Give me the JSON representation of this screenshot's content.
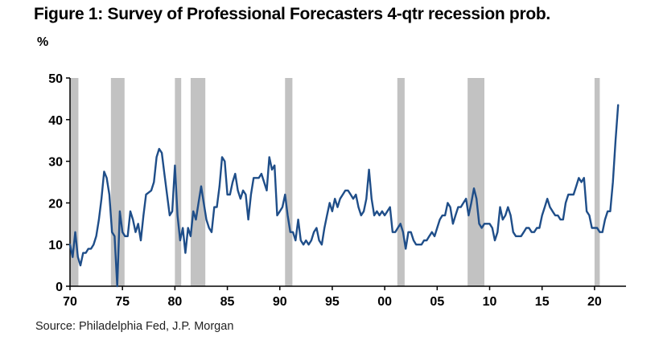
{
  "title": "Figure 1: Survey of Professional Forecasters 4-qtr recession prob.",
  "unit_label": "%",
  "source": "Source: Philadelphia Fed, J.P. Morgan",
  "colors": {
    "line": "#1f4e89",
    "recession": "#c2c2c2",
    "axis": "#000000"
  },
  "chart_data": {
    "type": "line",
    "title": "Figure 1: Survey of Professional Forecasters 4-qtr recession prob.",
    "ylabel": "%",
    "ylim": [
      0,
      50
    ],
    "xlim": [
      1970,
      2023
    ],
    "y_ticks": [
      0,
      10,
      20,
      30,
      40,
      50
    ],
    "x_ticks": [
      {
        "year": 1970,
        "label": "70"
      },
      {
        "year": 1975,
        "label": "75"
      },
      {
        "year": 1980,
        "label": "80"
      },
      {
        "year": 1985,
        "label": "85"
      },
      {
        "year": 1990,
        "label": "90"
      },
      {
        "year": 1995,
        "label": "95"
      },
      {
        "year": 2000,
        "label": "00"
      },
      {
        "year": 2005,
        "label": "05"
      },
      {
        "year": 2010,
        "label": "10"
      },
      {
        "year": 2015,
        "label": "15"
      },
      {
        "year": 2020,
        "label": "20"
      }
    ],
    "recessions": [
      [
        1970.0,
        1970.8
      ],
      [
        1973.9,
        1975.2
      ],
      [
        1980.0,
        1980.6
      ],
      [
        1981.5,
        1982.9
      ],
      [
        1990.5,
        1991.2
      ],
      [
        2001.2,
        2001.9
      ],
      [
        2007.9,
        2009.5
      ],
      [
        2020.0,
        2020.5
      ]
    ],
    "series": [
      {
        "values": [
          [
            1970.0,
            10
          ],
          [
            1970.25,
            7
          ],
          [
            1970.5,
            13
          ],
          [
            1970.75,
            7
          ],
          [
            1971.0,
            5
          ],
          [
            1971.25,
            8
          ],
          [
            1971.5,
            8
          ],
          [
            1971.75,
            9
          ],
          [
            1972.0,
            9
          ],
          [
            1972.25,
            10
          ],
          [
            1972.5,
            12
          ],
          [
            1972.75,
            16
          ],
          [
            1973.0,
            21
          ],
          [
            1973.25,
            27.5
          ],
          [
            1973.5,
            26
          ],
          [
            1973.75,
            22
          ],
          [
            1974.0,
            13
          ],
          [
            1974.25,
            12
          ],
          [
            1974.5,
            0
          ],
          [
            1974.75,
            18
          ],
          [
            1975.0,
            13
          ],
          [
            1975.25,
            12
          ],
          [
            1975.5,
            12
          ],
          [
            1975.75,
            18
          ],
          [
            1976.0,
            16
          ],
          [
            1976.25,
            13
          ],
          [
            1976.5,
            15
          ],
          [
            1976.75,
            11
          ],
          [
            1977.0,
            17
          ],
          [
            1977.25,
            22
          ],
          [
            1977.5,
            22.5
          ],
          [
            1977.75,
            23
          ],
          [
            1978.0,
            25
          ],
          [
            1978.25,
            31
          ],
          [
            1978.5,
            33
          ],
          [
            1978.75,
            32
          ],
          [
            1979.0,
            27
          ],
          [
            1979.25,
            22
          ],
          [
            1979.5,
            17
          ],
          [
            1979.75,
            18
          ],
          [
            1980.0,
            29
          ],
          [
            1980.25,
            17
          ],
          [
            1980.5,
            11
          ],
          [
            1980.75,
            14
          ],
          [
            1981.0,
            8
          ],
          [
            1981.25,
            14
          ],
          [
            1981.5,
            12
          ],
          [
            1981.75,
            18
          ],
          [
            1982.0,
            16
          ],
          [
            1982.25,
            20
          ],
          [
            1982.5,
            24
          ],
          [
            1982.75,
            20
          ],
          [
            1983.0,
            16
          ],
          [
            1983.25,
            14
          ],
          [
            1983.5,
            13
          ],
          [
            1983.75,
            19
          ],
          [
            1984.0,
            19
          ],
          [
            1984.25,
            24
          ],
          [
            1984.5,
            31
          ],
          [
            1984.75,
            30
          ],
          [
            1985.0,
            22
          ],
          [
            1985.25,
            22
          ],
          [
            1985.5,
            25
          ],
          [
            1985.75,
            27
          ],
          [
            1986.0,
            23
          ],
          [
            1986.25,
            21
          ],
          [
            1986.5,
            23
          ],
          [
            1986.75,
            22
          ],
          [
            1987.0,
            16
          ],
          [
            1987.25,
            22
          ],
          [
            1987.5,
            26
          ],
          [
            1987.75,
            26
          ],
          [
            1988.0,
            26
          ],
          [
            1988.25,
            27
          ],
          [
            1988.5,
            25
          ],
          [
            1988.75,
            23
          ],
          [
            1989.0,
            31
          ],
          [
            1989.25,
            28
          ],
          [
            1989.5,
            29
          ],
          [
            1989.75,
            17
          ],
          [
            1990.0,
            18
          ],
          [
            1990.25,
            19
          ],
          [
            1990.5,
            22
          ],
          [
            1990.75,
            17
          ],
          [
            1991.0,
            13
          ],
          [
            1991.25,
            13
          ],
          [
            1991.5,
            11
          ],
          [
            1991.75,
            16
          ],
          [
            1992.0,
            11
          ],
          [
            1992.25,
            10
          ],
          [
            1992.5,
            11
          ],
          [
            1992.75,
            10
          ],
          [
            1993.0,
            11
          ],
          [
            1993.25,
            13
          ],
          [
            1993.5,
            14
          ],
          [
            1993.75,
            11
          ],
          [
            1994.0,
            10
          ],
          [
            1994.25,
            14
          ],
          [
            1994.5,
            17
          ],
          [
            1994.75,
            20
          ],
          [
            1995.0,
            18
          ],
          [
            1995.25,
            21
          ],
          [
            1995.5,
            19
          ],
          [
            1995.75,
            21
          ],
          [
            1996.0,
            22
          ],
          [
            1996.25,
            23
          ],
          [
            1996.5,
            23
          ],
          [
            1996.75,
            22
          ],
          [
            1997.0,
            21
          ],
          [
            1997.25,
            22
          ],
          [
            1997.5,
            19
          ],
          [
            1997.75,
            17
          ],
          [
            1998.0,
            18
          ],
          [
            1998.25,
            21
          ],
          [
            1998.5,
            28
          ],
          [
            1998.75,
            21
          ],
          [
            1999.0,
            17
          ],
          [
            1999.25,
            18
          ],
          [
            1999.5,
            17
          ],
          [
            1999.75,
            18
          ],
          [
            2000.0,
            17
          ],
          [
            2000.25,
            18
          ],
          [
            2000.5,
            19
          ],
          [
            2000.75,
            13
          ],
          [
            2001.0,
            13
          ],
          [
            2001.25,
            14
          ],
          [
            2001.5,
            15
          ],
          [
            2001.75,
            13
          ],
          [
            2002.0,
            9
          ],
          [
            2002.25,
            13
          ],
          [
            2002.5,
            13
          ],
          [
            2002.75,
            11
          ],
          [
            2003.0,
            10
          ],
          [
            2003.25,
            10
          ],
          [
            2003.5,
            10
          ],
          [
            2003.75,
            11
          ],
          [
            2004.0,
            11
          ],
          [
            2004.25,
            12
          ],
          [
            2004.5,
            13
          ],
          [
            2004.75,
            12
          ],
          [
            2005.0,
            14
          ],
          [
            2005.25,
            16
          ],
          [
            2005.5,
            17
          ],
          [
            2005.75,
            17
          ],
          [
            2006.0,
            20
          ],
          [
            2006.25,
            19
          ],
          [
            2006.5,
            15
          ],
          [
            2006.75,
            17
          ],
          [
            2007.0,
            19
          ],
          [
            2007.25,
            19
          ],
          [
            2007.5,
            20
          ],
          [
            2007.75,
            21
          ],
          [
            2008.0,
            17
          ],
          [
            2008.25,
            20
          ],
          [
            2008.5,
            23.5
          ],
          [
            2008.75,
            21
          ],
          [
            2009.0,
            15
          ],
          [
            2009.25,
            14
          ],
          [
            2009.5,
            15
          ],
          [
            2009.75,
            15
          ],
          [
            2010.0,
            15
          ],
          [
            2010.25,
            14
          ],
          [
            2010.5,
            11
          ],
          [
            2010.75,
            13
          ],
          [
            2011.0,
            19
          ],
          [
            2011.25,
            16
          ],
          [
            2011.5,
            17
          ],
          [
            2011.75,
            19
          ],
          [
            2012.0,
            17
          ],
          [
            2012.25,
            13
          ],
          [
            2012.5,
            12
          ],
          [
            2012.75,
            12
          ],
          [
            2013.0,
            12
          ],
          [
            2013.25,
            13
          ],
          [
            2013.5,
            14
          ],
          [
            2013.75,
            14
          ],
          [
            2014.0,
            13
          ],
          [
            2014.25,
            13
          ],
          [
            2014.5,
            14
          ],
          [
            2014.75,
            14
          ],
          [
            2015.0,
            17
          ],
          [
            2015.25,
            19
          ],
          [
            2015.5,
            21
          ],
          [
            2015.75,
            19
          ],
          [
            2016.0,
            18
          ],
          [
            2016.25,
            17
          ],
          [
            2016.5,
            17
          ],
          [
            2016.75,
            16
          ],
          [
            2017.0,
            16
          ],
          [
            2017.25,
            20
          ],
          [
            2017.5,
            22
          ],
          [
            2017.75,
            22
          ],
          [
            2018.0,
            22
          ],
          [
            2018.25,
            24
          ],
          [
            2018.5,
            26
          ],
          [
            2018.75,
            25
          ],
          [
            2019.0,
            26
          ],
          [
            2019.25,
            18
          ],
          [
            2019.5,
            17
          ],
          [
            2019.75,
            14
          ],
          [
            2020.0,
            14
          ],
          [
            2020.25,
            14
          ],
          [
            2020.5,
            13
          ],
          [
            2020.75,
            13
          ],
          [
            2021.0,
            16
          ],
          [
            2021.25,
            18
          ],
          [
            2021.5,
            18
          ],
          [
            2021.75,
            25
          ],
          [
            2022.0,
            35
          ],
          [
            2022.25,
            43.5
          ]
        ]
      }
    ]
  }
}
